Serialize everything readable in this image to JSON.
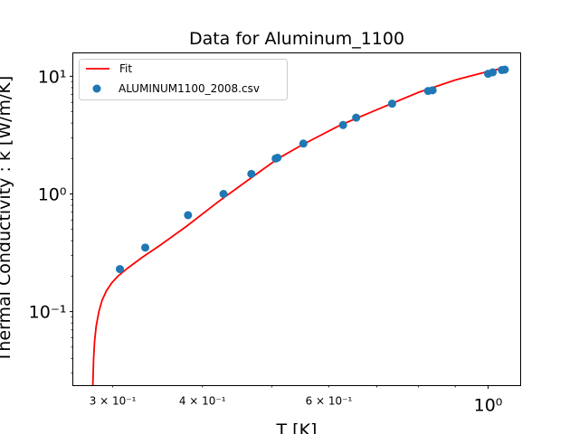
{
  "chart_data": {
    "type": "line",
    "title": "Data for Aluminum_1100",
    "xlabel": "T [K]",
    "ylabel": "Thermal Conductivity : k [W/m/K]",
    "xscale": "log",
    "yscale": "log",
    "xlim": [
      0.264,
      1.11
    ],
    "ylim": [
      0.0235,
      15.8
    ],
    "grid": false,
    "legend_position": "top-left",
    "x_ticks": [
      {
        "value": 0.3,
        "label": "3 × 10⁻¹"
      },
      {
        "value": 0.4,
        "label": "4 × 10⁻¹"
      },
      {
        "value": 0.6,
        "label": "6 × 10⁻¹"
      },
      {
        "value": 1.0,
        "label": "10⁰"
      }
    ],
    "y_ticks": [
      {
        "value": 0.1,
        "label": "10⁻¹"
      },
      {
        "value": 1.0,
        "label": "10⁰"
      },
      {
        "value": 10.0,
        "label": "10¹"
      }
    ],
    "series": [
      {
        "name": "Fit",
        "kind": "line",
        "color": "#ff0000",
        "x": [
          0.2815,
          0.2818,
          0.2822,
          0.283,
          0.2845,
          0.287,
          0.29,
          0.294,
          0.299,
          0.305,
          0.315,
          0.33,
          0.35,
          0.38,
          0.42,
          0.47,
          0.51,
          0.55,
          0.62,
          0.7,
          0.8,
          0.9,
          1.0,
          1.06
        ],
        "y": [
          0.0235,
          0.03,
          0.04,
          0.055,
          0.075,
          0.1,
          0.125,
          0.15,
          0.175,
          0.2,
          0.235,
          0.29,
          0.37,
          0.53,
          0.85,
          1.4,
          2.0,
          2.6,
          3.8,
          5.2,
          7.3,
          9.3,
          11.0,
          11.9
        ]
      },
      {
        "name": "ALUMINUM1100_2008.csv",
        "kind": "scatter",
        "color": "#1f77b4",
        "x": [
          0.307,
          0.333,
          0.382,
          0.428,
          0.468,
          0.506,
          0.509,
          0.553,
          0.628,
          0.655,
          0.735,
          0.825,
          0.837,
          1.0,
          1.015,
          1.045,
          1.055
        ],
        "y": [
          0.23,
          0.35,
          0.66,
          1.0,
          1.48,
          2.0,
          2.03,
          2.68,
          3.85,
          4.45,
          5.85,
          7.5,
          7.6,
          10.5,
          10.8,
          11.3,
          11.4
        ]
      }
    ]
  }
}
